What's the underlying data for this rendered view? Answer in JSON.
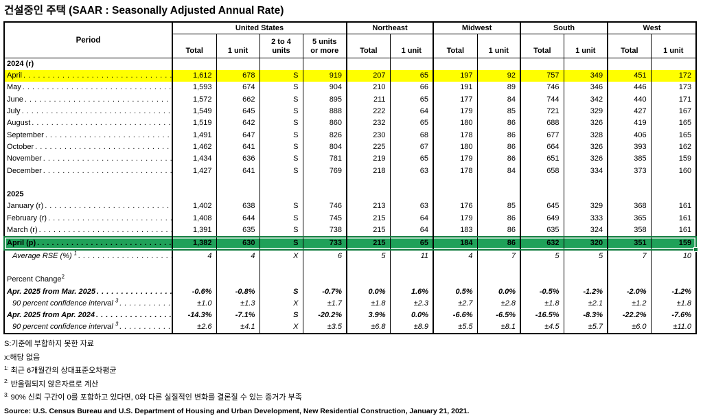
{
  "title": "건설중인 주택 (SAAR : Seasonally Adjusted Annual Rate)",
  "colors": {
    "highlight_yellow": "#FFFF00",
    "highlight_green": "#1FA159",
    "selection_border": "#0E7B3C"
  },
  "table": {
    "period_header": "Period",
    "groups": [
      {
        "label": "United States",
        "columns": [
          [
            "Total"
          ],
          [
            "1 unit"
          ],
          [
            "2 to 4",
            "units"
          ],
          [
            "5 units",
            "or more"
          ]
        ]
      },
      {
        "label": "Northeast",
        "columns": [
          [
            "Total"
          ],
          [
            "1 unit"
          ]
        ]
      },
      {
        "label": "Midwest",
        "columns": [
          [
            "Total"
          ],
          [
            "1 unit"
          ]
        ]
      },
      {
        "label": "South",
        "columns": [
          [
            "Total"
          ],
          [
            "1 unit"
          ]
        ]
      },
      {
        "label": "West",
        "columns": [
          [
            "Total"
          ],
          [
            "1 unit"
          ]
        ]
      }
    ],
    "rows": [
      {
        "kind": "section",
        "label": "2024 (r)"
      },
      {
        "kind": "data",
        "label": "April",
        "hl": "yellow",
        "values": [
          "1,612",
          "678",
          "S",
          "919",
          "207",
          "65",
          "197",
          "92",
          "757",
          "349",
          "451",
          "172"
        ]
      },
      {
        "kind": "data",
        "label": "May",
        "values": [
          "1,593",
          "674",
          "S",
          "904",
          "210",
          "66",
          "191",
          "89",
          "746",
          "346",
          "446",
          "173"
        ]
      },
      {
        "kind": "data",
        "label": "June",
        "values": [
          "1,572",
          "662",
          "S",
          "895",
          "211",
          "65",
          "177",
          "84",
          "744",
          "342",
          "440",
          "171"
        ]
      },
      {
        "kind": "data",
        "label": "July",
        "values": [
          "1,549",
          "645",
          "S",
          "888",
          "222",
          "64",
          "179",
          "85",
          "721",
          "329",
          "427",
          "167"
        ]
      },
      {
        "kind": "data",
        "label": "August",
        "values": [
          "1,519",
          "642",
          "S",
          "860",
          "232",
          "65",
          "180",
          "86",
          "688",
          "326",
          "419",
          "165"
        ]
      },
      {
        "kind": "data",
        "label": "September",
        "values": [
          "1,491",
          "647",
          "S",
          "826",
          "230",
          "68",
          "178",
          "86",
          "677",
          "328",
          "406",
          "165"
        ]
      },
      {
        "kind": "data",
        "label": "October",
        "values": [
          "1,462",
          "641",
          "S",
          "804",
          "225",
          "67",
          "180",
          "86",
          "664",
          "326",
          "393",
          "162"
        ]
      },
      {
        "kind": "data",
        "label": "November",
        "values": [
          "1,434",
          "636",
          "S",
          "781",
          "219",
          "65",
          "179",
          "86",
          "651",
          "326",
          "385",
          "159"
        ]
      },
      {
        "kind": "data",
        "label": "December",
        "values": [
          "1,427",
          "641",
          "S",
          "769",
          "218",
          "63",
          "178",
          "84",
          "658",
          "334",
          "373",
          "160"
        ]
      },
      {
        "kind": "blank"
      },
      {
        "kind": "section",
        "label": "2025"
      },
      {
        "kind": "data",
        "label": "January (r)",
        "values": [
          "1,402",
          "638",
          "S",
          "746",
          "213",
          "63",
          "176",
          "85",
          "645",
          "329",
          "368",
          "161"
        ]
      },
      {
        "kind": "data",
        "label": "February (r)",
        "values": [
          "1,408",
          "644",
          "S",
          "745",
          "215",
          "64",
          "179",
          "86",
          "649",
          "333",
          "365",
          "161"
        ]
      },
      {
        "kind": "data",
        "label": "March (r)",
        "values": [
          "1,391",
          "635",
          "S",
          "738",
          "215",
          "64",
          "183",
          "86",
          "635",
          "324",
          "358",
          "161"
        ]
      },
      {
        "kind": "data",
        "label": "April (p)",
        "hl": "green",
        "values": [
          "1,382",
          "630",
          "S",
          "733",
          "215",
          "65",
          "184",
          "86",
          "632",
          "320",
          "351",
          "159"
        ]
      },
      {
        "kind": "data",
        "label": "Average RSE (%) ",
        "sup": "1",
        "style": "italic",
        "indent": true,
        "values": [
          "4",
          "4",
          "X",
          "6",
          "5",
          "11",
          "4",
          "7",
          "5",
          "5",
          "7",
          "10"
        ]
      },
      {
        "kind": "blank"
      },
      {
        "kind": "label",
        "label": "Percent Change",
        "sup": "2"
      },
      {
        "kind": "data",
        "label": "Apr. 2025 from Mar. 2025",
        "style": "bold-italic",
        "values": [
          "-0.6%",
          "-0.8%",
          "S",
          "-0.7%",
          "0.0%",
          "1.6%",
          "0.5%",
          "0.0%",
          "-0.5%",
          "-1.2%",
          "-2.0%",
          "-1.2%"
        ]
      },
      {
        "kind": "data",
        "label": "90 percent confidence interval ",
        "sup": "3",
        "style": "italic",
        "indent": true,
        "values": [
          "±1.0",
          "±1.3",
          "X",
          "±1.7",
          "±1.8",
          "±2.3",
          "±2.7",
          "±2.8",
          "±1.8",
          "±2.1",
          "±1.2",
          "±1.8"
        ]
      },
      {
        "kind": "data",
        "label": "Apr. 2025 from Apr. 2024",
        "style": "bold-italic",
        "values": [
          "-14.3%",
          "-7.1%",
          "S",
          "-20.2%",
          "3.9%",
          "0.0%",
          "-6.6%",
          "-6.5%",
          "-16.5%",
          "-8.3%",
          "-22.2%",
          "-7.6%"
        ]
      },
      {
        "kind": "data",
        "label": "90 percent confidence interval ",
        "sup": "3",
        "style": "italic",
        "indent": true,
        "values": [
          "±2.6",
          "±4.1",
          "X",
          "±3.5",
          "±6.8",
          "±8.9",
          "±5.5",
          "±8.1",
          "±4.5",
          "±5.7",
          "±6.0",
          "±11.0"
        ]
      }
    ]
  },
  "footnotes": [
    {
      "sup": "",
      "text": "S:기준에 부합하지 못한 자료"
    },
    {
      "sup": "",
      "text": "x:해당 없음"
    },
    {
      "sup": "1:",
      "text": "최근 6개월간의 상대표준오차평균"
    },
    {
      "sup": "2:",
      "text": "반올림되지 않은자료로 계산"
    },
    {
      "sup": "3:",
      "text": "90% 신뢰 구간이 0를 포함하고 있다면, 0와 다른 실질적인 변화를 결론질 수 있는 증거가 부족"
    }
  ],
  "source": "Source: U.S. Census Bureau and U.S. Department of Housing and Urban Development, New Residential Construction, January 21, 2021."
}
